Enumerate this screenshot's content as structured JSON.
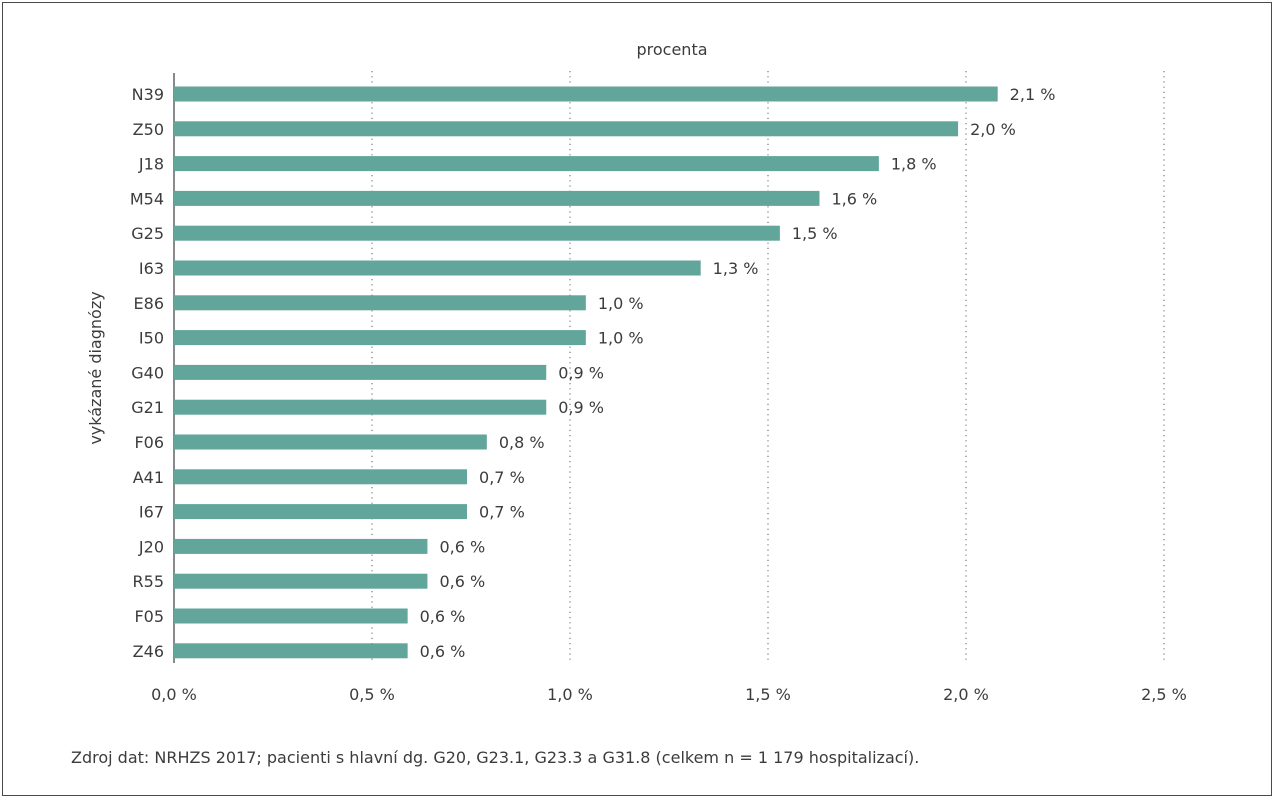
{
  "chart_data": {
    "type": "bar",
    "orientation": "horizontal",
    "title": "procenta",
    "ylabel": "vykázané diagnózy",
    "categories": [
      "N39",
      "Z50",
      "J18",
      "M54",
      "G25",
      "I63",
      "E86",
      "I50",
      "G40",
      "G21",
      "F06",
      "A41",
      "I67",
      "J20",
      "R55",
      "F05",
      "Z46"
    ],
    "values": [
      2.08,
      1.98,
      1.78,
      1.63,
      1.53,
      1.33,
      1.04,
      1.04,
      0.94,
      0.94,
      0.79,
      0.74,
      0.74,
      0.64,
      0.64,
      0.59,
      0.59
    ],
    "value_labels": [
      "2,1 %",
      "2,0 %",
      "1,8 %",
      "1,6 %",
      "1,5 %",
      "1,3 %",
      "1,0 %",
      "1,0 %",
      "0,9 %",
      "0,9 %",
      "0,8 %",
      "0,7 %",
      "0,7 %",
      "0,6 %",
      "0,6 %",
      "0,6 %",
      "0,6 %"
    ],
    "xticks": [
      0,
      0.5,
      1.0,
      1.5,
      2.0,
      2.5
    ],
    "xtick_labels": [
      "0,0 %",
      "0,5 %",
      "1,0 %",
      "1,5 %",
      "2,0 %",
      "2,5 %"
    ],
    "xlim": [
      0,
      2.5
    ],
    "grid": "vertical dotted",
    "bar_color": "#62a59b"
  },
  "footer": {
    "source": "Zdroj dat: NRHZS 2017; pacienti s hlavní dg. G20, G23.1, G23.3 a G31.8 (celkem n = 1 179 hospitalizací)."
  }
}
